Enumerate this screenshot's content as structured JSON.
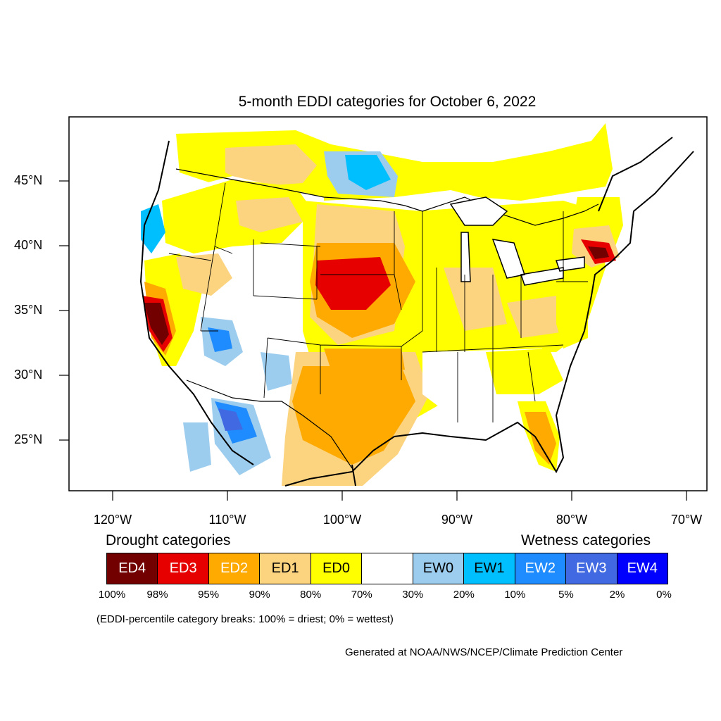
{
  "map": {
    "title": "5-month EDDI categories for October 6, 2022",
    "lat_labels": [
      "45°N",
      "40°N",
      "35°N",
      "30°N",
      "25°N"
    ],
    "lon_labels": [
      "120°W",
      "110°W",
      "100°W",
      "90°W",
      "80°W",
      "70°W"
    ]
  },
  "legend": {
    "drought_heading": "Drought categories",
    "wetness_heading": "Wetness categories",
    "categories": [
      {
        "label": "ED4",
        "color": "#730000",
        "text_color": "#ffffff"
      },
      {
        "label": "ED3",
        "color": "#e60000",
        "text_color": "#ffffff"
      },
      {
        "label": "ED2",
        "color": "#ffaa00",
        "text_color": "#ffffff"
      },
      {
        "label": "ED1",
        "color": "#fcd37f",
        "text_color": "#000000"
      },
      {
        "label": "ED0",
        "color": "#ffff00",
        "text_color": "#000000"
      },
      {
        "label": "",
        "color": "#ffffff",
        "text_color": "#000000"
      },
      {
        "label": "EW0",
        "color": "#9dcdee",
        "text_color": "#000000"
      },
      {
        "label": "EW1",
        "color": "#00bfff",
        "text_color": "#000000"
      },
      {
        "label": "EW2",
        "color": "#1e8cff",
        "text_color": "#ffffff"
      },
      {
        "label": "EW3",
        "color": "#4169e1",
        "text_color": "#ffffff"
      },
      {
        "label": "EW4",
        "color": "#0000ff",
        "text_color": "#ffffff"
      }
    ],
    "percentiles": [
      "100%",
      "98%",
      "95%",
      "90%",
      "80%",
      "70%",
      "30%",
      "20%",
      "10%",
      "5%",
      "2%",
      "0%"
    ],
    "note": "(EDDI-percentile category breaks: 100% = driest; 0% = wettest)"
  },
  "credit": "Generated at NOAA/NWS/NCEP/Climate Prediction Center"
}
